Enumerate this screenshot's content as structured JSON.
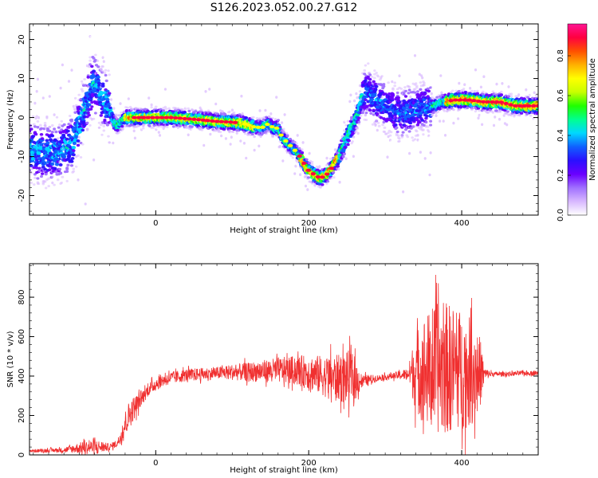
{
  "title": "S126.2023.052.00.27.G12",
  "chart_data": [
    {
      "type": "heatmap",
      "xlabel": "Height of straight line (km)",
      "ylabel": "Frequency (Hz)",
      "xlim": [
        -165,
        500
      ],
      "ylim": [
        -25,
        24
      ],
      "xticks": [
        0,
        200,
        400
      ],
      "yticks": [
        -20,
        -10,
        0,
        10,
        20
      ],
      "colorbar": {
        "label": "Normalized spectral amplitude",
        "range": [
          0,
          0.96
        ],
        "ticks": [
          "0.0",
          "0.2",
          "0.4",
          "0.6",
          "0.8"
        ],
        "colormap": [
          "#ffffff",
          "#d8b8ff",
          "#a070ff",
          "#6a00ff",
          "#2a10ff",
          "#1060ff",
          "#00d8ff",
          "#00ff90",
          "#20ff00",
          "#c8ff00",
          "#ffff00",
          "#ffb000",
          "#ff5000",
          "#ff0040",
          "#ff1493"
        ]
      },
      "ridge": {
        "x": [
          -165,
          -150,
          -130,
          -110,
          -100,
          -90,
          -82,
          -75,
          -70,
          -62,
          -55,
          -50,
          -45,
          -40,
          -30,
          -20,
          0,
          20,
          40,
          60,
          80,
          100,
          110,
          120,
          130,
          140,
          148,
          155,
          160,
          165,
          175,
          185,
          195,
          200,
          210,
          215,
          222,
          230,
          240,
          250,
          258,
          262,
          266,
          270,
          276,
          285,
          300,
          320,
          340,
          355,
          365,
          375,
          390,
          410,
          430,
          450,
          470,
          500
        ],
        "y": [
          -8,
          -9,
          -9,
          -7,
          -2,
          4,
          9,
          7,
          5,
          3,
          -1,
          -2,
          -1,
          0,
          0,
          0,
          0,
          0,
          -0.3,
          -0.6,
          -1,
          -1.2,
          -1.4,
          -1.8,
          -2.5,
          -2.5,
          -1.5,
          -3,
          -2.5,
          -5,
          -7,
          -9,
          -12,
          -13.5,
          -15,
          -15.5,
          -15,
          -13,
          -10,
          -5,
          -2,
          0,
          2,
          5,
          7,
          5,
          3,
          1,
          2,
          3,
          3,
          4,
          4.5,
          4.5,
          4,
          4,
          3,
          3
        ]
      }
    },
    {
      "type": "line",
      "xlabel": "Height of straight line (km)",
      "ylabel": "SNR (10 * v/v)",
      "xlim": [
        -165,
        500
      ],
      "ylim": [
        0,
        970
      ],
      "xticks": [
        0,
        200,
        400
      ],
      "yticks": [
        0,
        200,
        400,
        600,
        800
      ],
      "series": [
        {
          "color": "#f03030",
          "envelope": {
            "x": [
              -165,
              -120,
              -100,
              -80,
              -60,
              -50,
              -45,
              -40,
              -35,
              -30,
              -20,
              -10,
              0,
              10,
              20,
              40,
              60,
              80,
              100,
              120,
              140,
              160,
              180,
              200,
              220,
              240,
              250,
              255,
              260,
              270,
              290,
              310,
              330,
              335,
              340,
              345,
              350,
              360,
              370,
              380,
              390,
              400,
              410,
              420,
              425,
              430,
              440,
              460,
              480,
              500
            ],
            "mean": [
              20,
              25,
              35,
              40,
              40,
              60,
              100,
              160,
              200,
              230,
              280,
              330,
              360,
              380,
              390,
              405,
              410,
              415,
              420,
              420,
              425,
              430,
              430,
              420,
              400,
              390,
              390,
              400,
              380,
              375,
              390,
              400,
              410,
              420,
              420,
              430,
              430,
              430,
              440,
              440,
              440,
              430,
              420,
              420,
              420,
              410,
              410,
              410,
              415,
              415
            ],
            "amp": [
              10,
              15,
              35,
              50,
              20,
              25,
              50,
              80,
              90,
              80,
              50,
              40,
              45,
              40,
              40,
              40,
              40,
              40,
              50,
              60,
              70,
              80,
              90,
              110,
              130,
              150,
              170,
              170,
              140,
              40,
              20,
              20,
              40,
              150,
              250,
              300,
              350,
              380,
              420,
              420,
              400,
              380,
              350,
              300,
              200,
              40,
              15,
              15,
              15,
              15
            ]
          }
        }
      ]
    }
  ]
}
